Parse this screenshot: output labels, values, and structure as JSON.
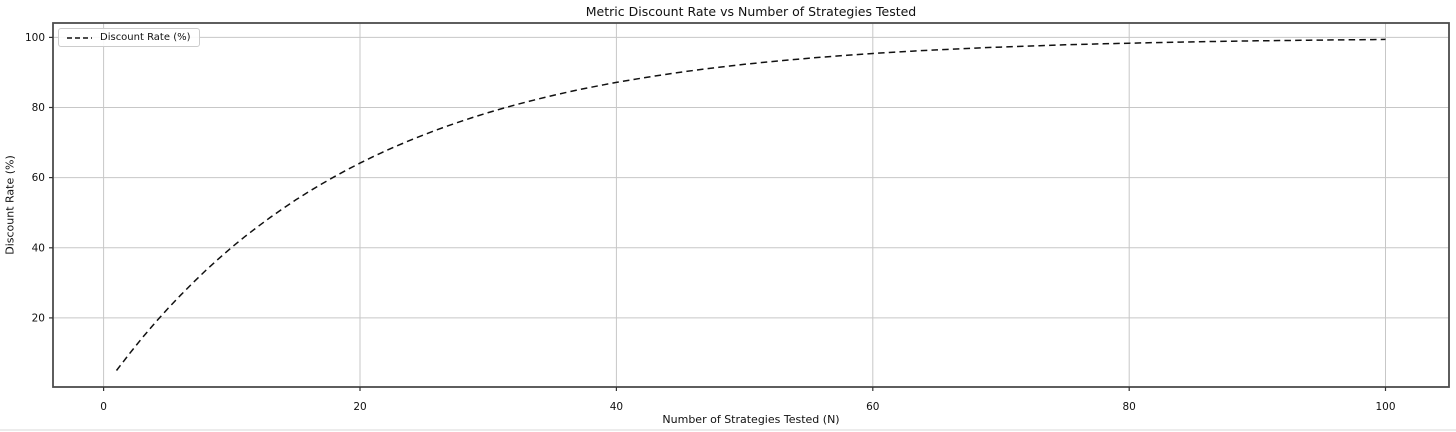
{
  "chart_data": {
    "type": "line",
    "title": "Metric Discount Rate vs Number of Strategies Tested",
    "xlabel": "Number of Strategies Tested (N)",
    "ylabel": "Discount Rate (%)",
    "x": [
      1,
      2,
      3,
      4,
      5,
      6,
      7,
      8,
      9,
      10,
      11,
      12,
      13,
      14,
      15,
      16,
      17,
      18,
      19,
      20,
      21,
      22,
      23,
      24,
      25,
      26,
      27,
      28,
      29,
      30,
      31,
      32,
      33,
      34,
      35,
      36,
      37,
      38,
      39,
      40,
      41,
      42,
      43,
      44,
      45,
      46,
      47,
      48,
      49,
      50,
      51,
      52,
      53,
      54,
      55,
      56,
      57,
      58,
      59,
      60,
      61,
      62,
      63,
      64,
      65,
      66,
      67,
      68,
      69,
      70,
      71,
      72,
      73,
      74,
      75,
      76,
      77,
      78,
      79,
      80,
      81,
      82,
      83,
      84,
      85,
      86,
      87,
      88,
      89,
      90,
      91,
      92,
      93,
      94,
      95,
      96,
      97,
      98,
      99,
      100
    ],
    "series": [
      {
        "name": "Discount Rate (%)",
        "color": "#111111",
        "line_style": "dashed",
        "values": [
          5.0,
          9.75,
          14.26,
          18.55,
          22.62,
          26.49,
          30.17,
          33.66,
          36.98,
          40.13,
          43.12,
          45.96,
          48.67,
          51.23,
          53.67,
          55.99,
          58.19,
          60.28,
          62.26,
          64.15,
          65.94,
          67.65,
          69.26,
          70.8,
          72.26,
          73.65,
          74.97,
          76.22,
          77.41,
          78.54,
          79.61,
          80.63,
          81.6,
          82.52,
          83.39,
          84.22,
          85.01,
          85.76,
          86.47,
          87.15,
          87.79,
          88.4,
          88.98,
          89.53,
          90.06,
          90.55,
          91.03,
          91.47,
          91.9,
          92.31,
          92.69,
          93.06,
          93.4,
          93.73,
          94.05,
          94.34,
          94.63,
          94.9,
          95.15,
          95.39,
          95.62,
          95.84,
          96.05,
          96.25,
          96.44,
          96.61,
          96.78,
          96.94,
          97.1,
          97.24,
          97.38,
          97.51,
          97.64,
          97.75,
          97.87,
          97.97,
          98.07,
          98.17,
          98.26,
          98.35,
          98.43,
          98.51,
          98.58,
          98.65,
          98.72,
          98.79,
          98.85,
          98.9,
          98.96,
          99.01,
          99.06,
          99.11,
          99.15,
          99.19,
          99.23,
          99.27,
          99.31,
          99.34,
          99.38,
          99.41
        ]
      }
    ],
    "xticks": [
      0,
      20,
      40,
      60,
      80,
      100
    ],
    "yticks": [
      20,
      40,
      60,
      80,
      100
    ],
    "xlim": [
      -3.95,
      104.95
    ],
    "ylim": [
      0.3,
      104.1
    ],
    "grid": true,
    "legend_position": "upper left",
    "colors": {
      "background": "#ffffff",
      "grid": "#c7c7c7",
      "spine": "#4d4d4d",
      "tick": "#333333",
      "text": "#111111",
      "line": "#111111"
    }
  }
}
